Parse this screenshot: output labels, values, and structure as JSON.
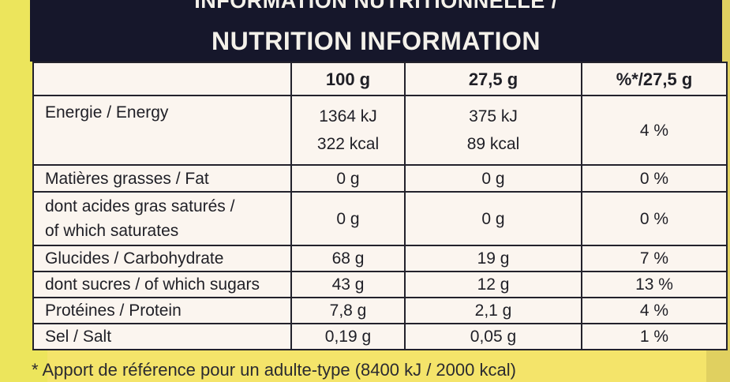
{
  "header": {
    "title_fr": "INFORMATION NUTRITIONNELLE /",
    "title_en": "NUTRITION INFORMATION"
  },
  "table": {
    "columns": [
      "",
      "100 g",
      "27,5 g",
      "%*/27,5 g"
    ],
    "rows": [
      {
        "label": "Energie / Energy",
        "per100_kj": "1364 kJ",
        "per100_kcal": "322 kcal",
        "portion_kj": "375 kJ",
        "portion_kcal": "89 kcal",
        "ri": "4 %"
      },
      {
        "label": "Matières grasses / Fat",
        "per100": "0 g",
        "portion": "0 g",
        "ri": "0 %"
      },
      {
        "label_fr": "dont acides gras saturés /",
        "label_en": "of which saturates",
        "per100": "0 g",
        "portion": "0 g",
        "ri": "0 %"
      },
      {
        "label": "Glucides / Carbohydrate",
        "per100": "68 g",
        "portion": "19 g",
        "ri": "7 %"
      },
      {
        "label": "dont sucres / of which sugars",
        "per100": "43 g",
        "portion": "12 g",
        "ri": "13 %"
      },
      {
        "label": "Protéines / Protein",
        "per100": "7,8 g",
        "portion": "2,1 g",
        "ri": "4 %"
      },
      {
        "label": "Sel / Salt",
        "per100": "0,19 g",
        "portion": "0,05 g",
        "ri": "1 %"
      }
    ]
  },
  "footnote": "* Apport de référence pour un adulte-type (8400 kJ / 2000 kcal)"
}
